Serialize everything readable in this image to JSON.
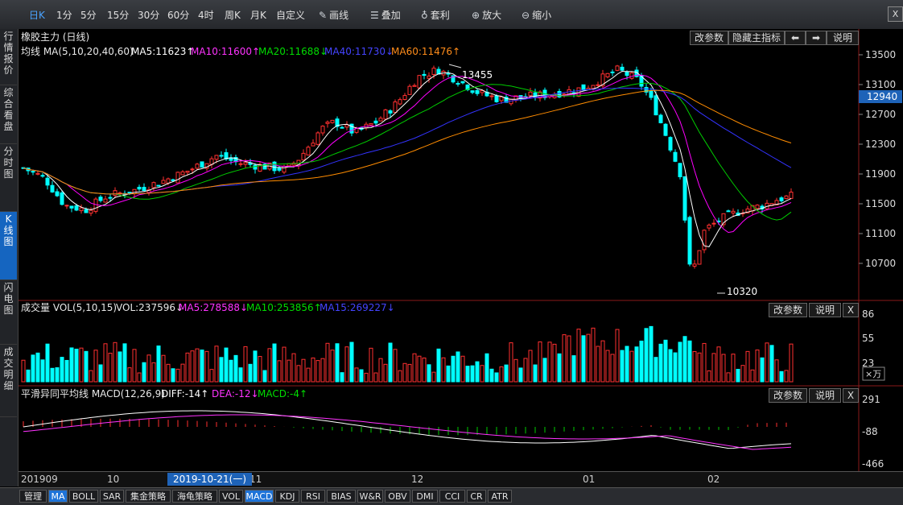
{
  "toolbar": {
    "items": [
      "日K",
      "1分",
      "5分",
      "15分",
      "30分",
      "60分",
      "4时",
      "周K",
      "月K",
      "自定义",
      "画线",
      "叠加",
      "套利",
      "放大",
      "缩小"
    ],
    "close_label": "X"
  },
  "sidebar": {
    "tabs": [
      "行情报价",
      "综合看盘",
      "分时图",
      "K线图",
      "闪电图",
      "成交明细"
    ]
  },
  "price_panel": {
    "title": "橡胶主力 (日线)",
    "buttons": [
      "改参数",
      "隐藏主指标",
      "⬅",
      "➡",
      "说明"
    ],
    "ma_header": "均线 MA(5,10,20,40,60)",
    "ma5": "MA5:11623↑",
    "ma10": "MA10:11600↑",
    "ma20": "MA20:11688↓",
    "ma40": "MA40:11730↓",
    "ma60": "MA60:11476↑",
    "y_ticks": [
      "13500",
      "13100",
      "12700",
      "12300",
      "11900",
      "11500",
      "11100",
      "10700"
    ],
    "current_price": "12940",
    "high_label": "13455",
    "low_label": "10320",
    "colors": {
      "ma5": "#ffffff",
      "ma10": "#ff00ff",
      "ma20": "#00cc00",
      "ma40": "#3333ff",
      "ma60": "#ff8c00",
      "up": "#ff3030",
      "down": "#00ffff"
    }
  },
  "volume_panel": {
    "header": "成交量 VOL(5,10,15)",
    "vol": "VOL:237596↓",
    "ma5": "MA5:278588↓",
    "ma10": "MA10:253856↑",
    "ma15": "MA15:269227↓",
    "buttons": [
      "改参数",
      "说明",
      "X"
    ],
    "y_ticks": [
      "86",
      "55",
      "23"
    ],
    "unit": "×万"
  },
  "macd_panel": {
    "header": "平滑异同平均线 MACD(12,26,9)",
    "diff": "DIFF:-14↑",
    "dea": "DEA:-12↓",
    "macd": "MACD:-4↑",
    "buttons": [
      "改参数",
      "说明",
      "X"
    ],
    "y_ticks": [
      "291",
      "-88",
      "-466"
    ]
  },
  "x_axis": {
    "labels": [
      "201909",
      "10",
      "11",
      "12",
      "01",
      "02"
    ],
    "cursor_date": "2019-10-21(一)"
  },
  "bottom_tabs": [
    "管理",
    "MA",
    "BOLL",
    "SAR",
    "集金策略",
    "海龟策略",
    "VOL",
    "MACD",
    "KDJ",
    "RSI",
    "BIAS",
    "W&R",
    "OBV",
    "DMI",
    "CCI",
    "CR",
    "ATR"
  ]
}
